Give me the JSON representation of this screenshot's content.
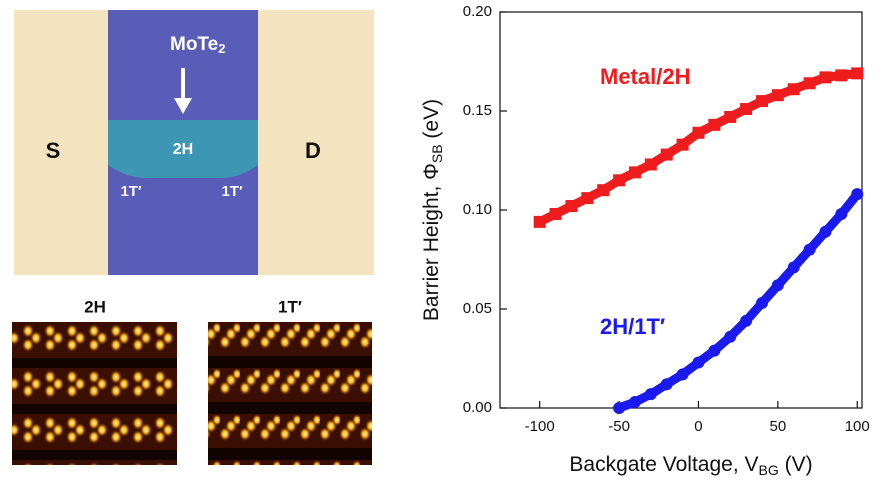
{
  "device": {
    "material": [
      "MoTe",
      "2"
    ],
    "source": "S",
    "drain": "D",
    "channel": "2H",
    "contact_left": "1T′",
    "contact_right": "1T′"
  },
  "stm": {
    "left_title": "2H",
    "right_title": "1T′"
  },
  "chart_data": {
    "type": "scatter",
    "x_label": [
      "Backgate Voltage, V",
      "BG",
      " (V)"
    ],
    "y_label": [
      "Barrier Height, Φ",
      "SB",
      " (eV)"
    ],
    "xlim": [
      -125,
      103
    ],
    "ylim": [
      0,
      0.2
    ],
    "xticks": [
      -100,
      -50,
      0,
      50,
      100
    ],
    "yticks": [
      {
        "value": 0,
        "label": "0.00"
      },
      {
        "value": 0.05,
        "label": "0.05"
      },
      {
        "value": 0.1,
        "label": "0.10"
      },
      {
        "value": 0.15,
        "label": "0.15"
      },
      {
        "value": 0.2,
        "label": "0.20"
      }
    ],
    "series": [
      {
        "name": "Metal/2H",
        "color": "#ee1c1c",
        "marker": "square",
        "x": [
          -100,
          -90,
          -80,
          -70,
          -60,
          -50,
          -40,
          -30,
          -20,
          -10,
          0,
          10,
          20,
          30,
          40,
          50,
          60,
          70,
          80,
          90,
          100
        ],
        "values": [
          0.094,
          0.098,
          0.102,
          0.106,
          0.11,
          0.115,
          0.119,
          0.123,
          0.128,
          0.133,
          0.139,
          0.143,
          0.147,
          0.151,
          0.155,
          0.158,
          0.161,
          0.164,
          0.167,
          0.168,
          0.169
        ]
      },
      {
        "name": "2H/1T′",
        "color": "#1a1aee",
        "marker": "circle",
        "x": [
          -50,
          -40,
          -30,
          -20,
          -10,
          0,
          10,
          20,
          30,
          40,
          50,
          60,
          70,
          80,
          90,
          100
        ],
        "values": [
          0,
          0.003,
          0.007,
          0.012,
          0.017,
          0.023,
          0.029,
          0.036,
          0.044,
          0.053,
          0.062,
          0.071,
          0.08,
          0.089,
          0.098,
          0.108
        ]
      }
    ]
  }
}
